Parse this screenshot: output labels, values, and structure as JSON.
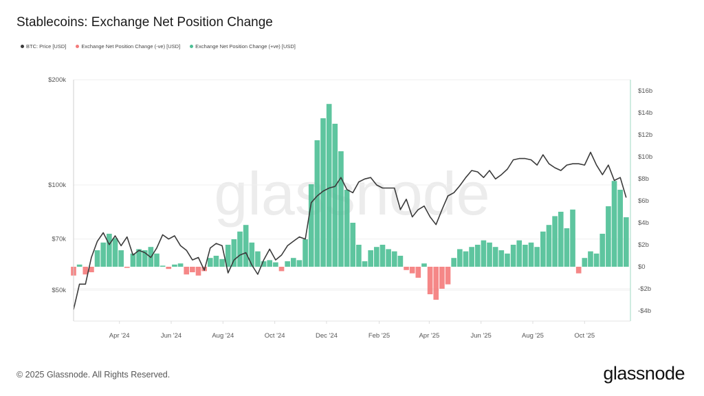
{
  "title": "Stablecoins: Exchange Net Position Change",
  "footer": "© 2025 Glassnode. All Rights Reserved.",
  "logo": "glassnode",
  "watermark": "glassnode",
  "legend": [
    {
      "label": "BTC: Price [USD]",
      "color": "#3a3a3a"
    },
    {
      "label": "Exchange Net Position Change (-ve) [USD]",
      "color": "#f47a7a"
    },
    {
      "label": "Exchange Net Position Change (+ve) [USD]",
      "color": "#4dbf95"
    }
  ],
  "chart_data": {
    "type": "bar+line",
    "title": "Stablecoins: Exchange Net Position Change",
    "xlim": [
      "2024-02-07",
      "2025-11-24"
    ],
    "x_ticks": [
      {
        "date": "2024-04-01",
        "label": "Apr '24"
      },
      {
        "date": "2024-06-01",
        "label": "Jun '24"
      },
      {
        "date": "2024-08-01",
        "label": "Aug '24"
      },
      {
        "date": "2024-10-01",
        "label": "Oct '24"
      },
      {
        "date": "2024-12-01",
        "label": "Dec '24"
      },
      {
        "date": "2025-02-01",
        "label": "Feb '25"
      },
      {
        "date": "2025-04-01",
        "label": "Apr '25"
      },
      {
        "date": "2025-06-01",
        "label": "Jun '25"
      },
      {
        "date": "2025-08-01",
        "label": "Aug '25"
      },
      {
        "date": "2025-10-01",
        "label": "Oct '25"
      }
    ],
    "left_axis": {
      "scale": "log",
      "unit": "USD",
      "ticks": [
        {
          "value": 200000,
          "label": "$200k"
        },
        {
          "value": 100000,
          "label": "$100k"
        },
        {
          "value": 70000,
          "label": "$70k"
        },
        {
          "value": 50000,
          "label": "$50k"
        }
      ]
    },
    "right_axis": {
      "scale": "linear",
      "unit": "USD billions",
      "ylim": [
        -5,
        16.5
      ],
      "ticks": [
        {
          "value": 16,
          "label": "$16b"
        },
        {
          "value": 14,
          "label": "$14b"
        },
        {
          "value": 12,
          "label": "$12b"
        },
        {
          "value": 10,
          "label": "$10b"
        },
        {
          "value": 8,
          "label": "$8b"
        },
        {
          "value": 6,
          "label": "$6b"
        },
        {
          "value": 4,
          "label": "$4b"
        },
        {
          "value": 2,
          "label": "$2b"
        },
        {
          "value": 0,
          "label": "$0"
        },
        {
          "value": -2,
          "label": "-$2b"
        },
        {
          "value": -4,
          "label": "-$4b"
        }
      ]
    },
    "dates": [
      "2024-02-07",
      "2024-02-14",
      "2024-02-21",
      "2024-02-28",
      "2024-03-06",
      "2024-03-13",
      "2024-03-20",
      "2024-03-27",
      "2024-04-03",
      "2024-04-10",
      "2024-04-17",
      "2024-04-24",
      "2024-05-01",
      "2024-05-08",
      "2024-05-15",
      "2024-05-22",
      "2024-05-29",
      "2024-06-05",
      "2024-06-12",
      "2024-06-19",
      "2024-06-26",
      "2024-07-03",
      "2024-07-10",
      "2024-07-17",
      "2024-07-24",
      "2024-07-31",
      "2024-08-07",
      "2024-08-14",
      "2024-08-21",
      "2024-08-28",
      "2024-09-04",
      "2024-09-11",
      "2024-09-18",
      "2024-09-25",
      "2024-10-02",
      "2024-10-09",
      "2024-10-16",
      "2024-10-23",
      "2024-10-30",
      "2024-11-06",
      "2024-11-13",
      "2024-11-20",
      "2024-11-27",
      "2024-12-04",
      "2024-12-11",
      "2024-12-18",
      "2024-12-25",
      "2025-01-01",
      "2025-01-08",
      "2025-01-15",
      "2025-01-22",
      "2025-01-29",
      "2025-02-05",
      "2025-02-12",
      "2025-02-19",
      "2025-02-26",
      "2025-03-05",
      "2025-03-12",
      "2025-03-19",
      "2025-03-26",
      "2025-04-02",
      "2025-04-09",
      "2025-04-16",
      "2025-04-23",
      "2025-04-30",
      "2025-05-07",
      "2025-05-14",
      "2025-05-21",
      "2025-05-28",
      "2025-06-04",
      "2025-06-11",
      "2025-06-18",
      "2025-06-25",
      "2025-07-02",
      "2025-07-09",
      "2025-07-16",
      "2025-07-23",
      "2025-07-30",
      "2025-08-06",
      "2025-08-13",
      "2025-08-20",
      "2025-08-27",
      "2025-09-03",
      "2025-09-10",
      "2025-09-17",
      "2025-09-24",
      "2025-10-01",
      "2025-10-08",
      "2025-10-15",
      "2025-10-22",
      "2025-10-29",
      "2025-11-05",
      "2025-11-12",
      "2025-11-19"
    ],
    "series": [
      {
        "name": "BTC: Price [USD]",
        "type": "line",
        "axis": "left",
        "color": "#3a3a3a",
        "values": [
          44000,
          52000,
          52000,
          62000,
          69000,
          73000,
          67500,
          71500,
          67000,
          71000,
          63000,
          65000,
          64000,
          62000,
          66000,
          72000,
          70000,
          71500,
          67000,
          65000,
          61000,
          62000,
          57000,
          66000,
          68000,
          67000,
          56000,
          61000,
          63000,
          64000,
          59000,
          55500,
          61000,
          65500,
          61000,
          63000,
          67000,
          69000,
          71000,
          70000,
          89000,
          93000,
          96000,
          98000,
          99000,
          105000,
          97000,
          95000,
          102000,
          104000,
          105000,
          100000,
          98000,
          98000,
          98000,
          85000,
          91000,
          81000,
          85000,
          87000,
          81000,
          77000,
          85000,
          93000,
          95000,
          99500,
          105000,
          110000,
          109000,
          105000,
          110000,
          104000,
          107000,
          111000,
          118000,
          119000,
          119000,
          118000,
          114000,
          122000,
          115000,
          112000,
          110000,
          114000,
          115000,
          115000,
          114000,
          124000,
          114000,
          107000,
          114000,
          103000,
          105000,
          92000
        ]
      },
      {
        "name": "Exchange Net Position Change [USD]",
        "type": "bar",
        "axis": "right",
        "unit": "billions USD",
        "values": [
          -0.8,
          0.2,
          -0.7,
          -0.5,
          1.5,
          2.2,
          3.0,
          2.6,
          1.5,
          -0.1,
          1.2,
          1.6,
          1.5,
          1.8,
          1.2,
          0.1,
          -0.2,
          0.2,
          0.3,
          -0.7,
          -0.5,
          -0.8,
          -0.4,
          0.8,
          1.0,
          0.7,
          2.0,
          2.5,
          3.2,
          3.8,
          2.2,
          1.4,
          0.5,
          0.6,
          0.4,
          -0.4,
          0.5,
          0.8,
          0.6,
          2.5,
          7.5,
          11.5,
          13.5,
          14.8,
          13.0,
          10.5,
          7.0,
          4.0,
          2.0,
          0.5,
          1.5,
          1.8,
          2.0,
          1.6,
          1.4,
          1.0,
          -0.3,
          -0.6,
          -1.0,
          0.3,
          -2.5,
          -3.0,
          -2.0,
          -1.6,
          0.8,
          1.6,
          1.4,
          1.8,
          2.0,
          2.4,
          2.2,
          1.8,
          1.5,
          1.2,
          2.0,
          2.4,
          2.0,
          2.2,
          1.8,
          3.2,
          3.8,
          4.6,
          5.0,
          3.5,
          5.2,
          -0.6,
          0.8,
          1.4,
          1.2,
          3.0,
          5.5,
          7.8,
          7.0,
          4.5
        ]
      }
    ],
    "positive_color": "#4dbf95",
    "negative_color": "#f47a7a",
    "grid": true,
    "legend_position": "top-left"
  }
}
